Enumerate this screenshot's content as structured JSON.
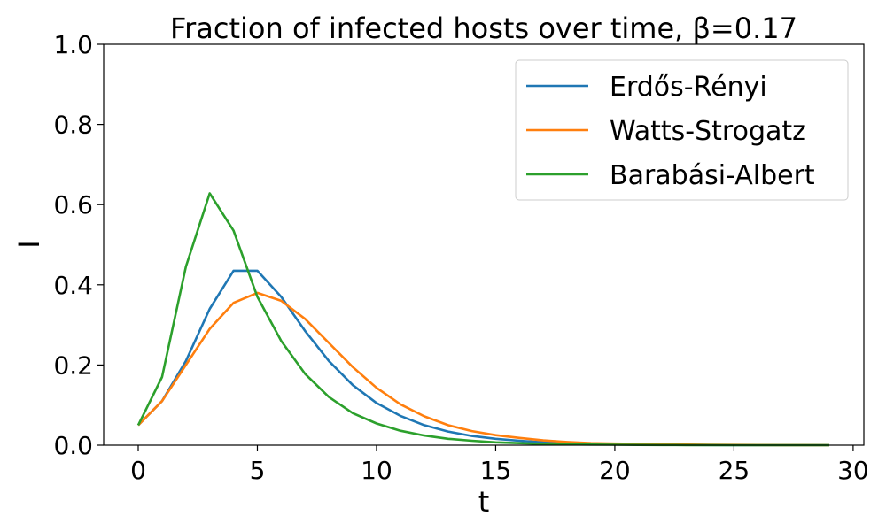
{
  "chart_data": {
    "type": "line",
    "title": "Fraction of infected hosts over time, β=0.17",
    "xlabel": "t",
    "ylabel": "I",
    "xlim": [
      -1.45,
      30.45
    ],
    "ylim": [
      0,
      1.0
    ],
    "xticks": [
      0,
      5,
      10,
      15,
      20,
      25,
      30
    ],
    "yticks": [
      0.0,
      0.2,
      0.4,
      0.6,
      0.8,
      1.0
    ],
    "xtick_labels": [
      "0",
      "5",
      "10",
      "15",
      "20",
      "25",
      "30"
    ],
    "ytick_labels": [
      "0.0",
      "0.2",
      "0.4",
      "0.6",
      "0.8",
      "1.0"
    ],
    "grid": false,
    "legend_position": "top-right",
    "x": [
      0,
      1,
      2,
      3,
      4,
      5,
      6,
      7,
      8,
      9,
      10,
      11,
      12,
      13,
      14,
      15,
      16,
      17,
      18,
      19,
      20,
      21,
      22,
      23,
      24,
      25,
      26,
      27,
      28,
      29
    ],
    "series": [
      {
        "name": "Erdős-Rényi",
        "color": "#1f77b4",
        "values": [
          0.05,
          0.11,
          0.21,
          0.34,
          0.435,
          0.435,
          0.37,
          0.285,
          0.21,
          0.15,
          0.105,
          0.073,
          0.05,
          0.034,
          0.023,
          0.016,
          0.011,
          0.007,
          0.005,
          0.003,
          0.002,
          0.0015,
          0.001,
          0.0007,
          0.0005,
          0.0003,
          0.0002,
          0.0001,
          0.0001,
          0.0001
        ]
      },
      {
        "name": "Watts-Strogatz",
        "color": "#ff7f0e",
        "values": [
          0.05,
          0.11,
          0.2,
          0.29,
          0.355,
          0.38,
          0.36,
          0.315,
          0.255,
          0.195,
          0.143,
          0.102,
          0.072,
          0.05,
          0.035,
          0.025,
          0.018,
          0.012,
          0.008,
          0.005,
          0.004,
          0.003,
          0.002,
          0.0015,
          0.001,
          0.0007,
          0.0005,
          0.0003,
          0.0002,
          0.0001
        ]
      },
      {
        "name": "Barabási-Albert",
        "color": "#2ca02c",
        "values": [
          0.05,
          0.17,
          0.445,
          0.628,
          0.535,
          0.37,
          0.26,
          0.178,
          0.12,
          0.08,
          0.054,
          0.036,
          0.024,
          0.016,
          0.011,
          0.007,
          0.005,
          0.003,
          0.002,
          0.0015,
          0.001,
          0.0007,
          0.0005,
          0.0003,
          0.0002,
          0.0001,
          0.0001,
          0.0,
          0.0,
          0.0
        ]
      }
    ]
  }
}
